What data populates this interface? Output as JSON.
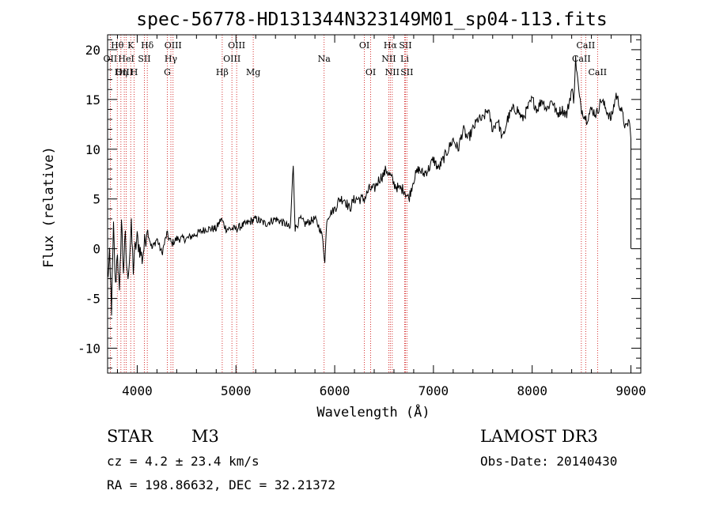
{
  "chart_data": {
    "type": "line",
    "title": "spec-56778-HD131344N323149M01_sp04-113.fits",
    "xlabel": "Wavelength (Å)",
    "ylabel": "Flux (relative)",
    "xlim": [
      3700,
      9100
    ],
    "ylim": [
      -12.5,
      21.5
    ],
    "xticks": [
      4000,
      5000,
      6000,
      7000,
      8000,
      9000
    ],
    "yticks": [
      -10,
      -5,
      0,
      5,
      10,
      15,
      20
    ],
    "grid": false,
    "legend": "none",
    "series": [
      {
        "name": "flux",
        "x": [
          3700,
          3720,
          3740,
          3760,
          3780,
          3800,
          3820,
          3840,
          3860,
          3880,
          3900,
          3920,
          3940,
          3960,
          3980,
          4000,
          4050,
          4100,
          4150,
          4200,
          4250,
          4300,
          4350,
          4400,
          4500,
          4600,
          4700,
          4800,
          4850,
          4900,
          5000,
          5100,
          5200,
          5300,
          5400,
          5500,
          5550,
          5580,
          5600,
          5650,
          5700,
          5800,
          5850,
          5880,
          5900,
          5920,
          5950,
          6000,
          6050,
          6100,
          6150,
          6200,
          6250,
          6300,
          6350,
          6400,
          6450,
          6500,
          6520,
          6550,
          6580,
          6600,
          6650,
          6700,
          6750,
          6800,
          6850,
          6900,
          6950,
          7000,
          7050,
          7100,
          7150,
          7200,
          7250,
          7300,
          7350,
          7400,
          7450,
          7500,
          7550,
          7600,
          7650,
          7700,
          7750,
          7800,
          7850,
          7900,
          7950,
          8000,
          8050,
          8100,
          8150,
          8200,
          8250,
          8300,
          8350,
          8400,
          8420,
          8440,
          8460,
          8480,
          8500,
          8550,
          8600,
          8650,
          8700,
          8750,
          8800,
          8850,
          8900,
          8950,
          8980,
          9000
        ],
        "y": [
          -3,
          -1,
          -6,
          2,
          -4,
          0,
          -5,
          3,
          -2,
          1,
          -3,
          -1,
          2,
          -2,
          0,
          1,
          -1,
          2,
          0,
          1,
          -0.5,
          1.5,
          0.5,
          1,
          1,
          1.5,
          2,
          2,
          3,
          2,
          2,
          2.5,
          3,
          2.5,
          3,
          2.5,
          2,
          8.5,
          2,
          3,
          2.5,
          3,
          2,
          1,
          -1.5,
          3,
          3.5,
          4,
          5,
          5,
          4,
          5,
          5,
          5,
          6,
          6,
          7,
          7.5,
          8,
          7.5,
          7,
          6.5,
          6,
          6,
          5,
          7,
          8,
          7.5,
          8,
          9,
          8,
          9,
          10,
          11,
          10,
          12,
          11,
          12,
          13,
          13,
          14,
          12,
          13,
          11,
          13,
          14,
          14,
          13,
          14,
          15,
          14,
          15,
          14,
          15,
          13.5,
          14,
          13.5,
          16,
          15,
          19,
          17,
          15,
          14,
          13,
          14,
          13.5,
          15,
          14,
          13,
          15.5,
          14,
          12,
          13,
          11
        ],
        "values": [
          -3,
          -1,
          -6,
          2,
          -4,
          0,
          -5,
          3,
          -2,
          1,
          -3,
          -1,
          2,
          -2,
          0,
          1,
          -1,
          2,
          0,
          1,
          -0.5,
          1.5,
          0.5,
          1,
          1,
          1.5,
          2,
          2,
          3,
          2,
          2,
          2.5,
          3,
          2.5,
          3,
          2.5,
          2,
          8.5,
          2,
          3,
          2.5,
          3,
          2,
          1,
          -1.5,
          3,
          3.5,
          4,
          5,
          5,
          4,
          5,
          5,
          5,
          6,
          6,
          7,
          7.5,
          8,
          7.5,
          7,
          6.5,
          6,
          6,
          5,
          7,
          8,
          7.5,
          8,
          9,
          8,
          9,
          10,
          11,
          10,
          12,
          11,
          12,
          13,
          13,
          14,
          12,
          13,
          11,
          13,
          14,
          14,
          13,
          14,
          15,
          14,
          15,
          14,
          15,
          13.5,
          14,
          13.5,
          16,
          15,
          19,
          17,
          15,
          14,
          13,
          14,
          13.5,
          15,
          14,
          13,
          15.5,
          14,
          12,
          13,
          11
        ]
      }
    ],
    "spectral_lines": [
      {
        "name": "Hθ",
        "wavelength": 3798,
        "row": 0
      },
      {
        "name": "OII",
        "wavelength": 3727,
        "row": 1
      },
      {
        "name": "OIII",
        "wavelength": 3869,
        "row": 2
      },
      {
        "name": "K",
        "wavelength": 3934,
        "row": 0
      },
      {
        "name": "HeI",
        "wavelength": 3889,
        "row": 1
      },
      {
        "name": "Hη",
        "wavelength": 3835,
        "row": 2
      },
      {
        "name": "SII",
        "wavelength": 4072,
        "row": 1
      },
      {
        "name": "H",
        "wavelength": 3969,
        "row": 2
      },
      {
        "name": "Hδ",
        "wavelength": 4102,
        "row": 0
      },
      {
        "name": "OIII",
        "wavelength": 4363,
        "row": 0
      },
      {
        "name": "Hγ",
        "wavelength": 4341,
        "row": 1
      },
      {
        "name": "G",
        "wavelength": 4305,
        "row": 2
      },
      {
        "name": "OIII",
        "wavelength": 5007,
        "row": 0
      },
      {
        "name": "OIII",
        "wavelength": 4959,
        "row": 1
      },
      {
        "name": "Hβ",
        "wavelength": 4861,
        "row": 2
      },
      {
        "name": "Mg",
        "wavelength": 5175,
        "row": 2
      },
      {
        "name": "Na",
        "wavelength": 5893,
        "row": 1
      },
      {
        "name": "OI",
        "wavelength": 6300,
        "row": 0
      },
      {
        "name": "OI",
        "wavelength": 6364,
        "row": 2
      },
      {
        "name": "Hα",
        "wavelength": 6563,
        "row": 0
      },
      {
        "name": "SII",
        "wavelength": 6716,
        "row": 0
      },
      {
        "name": "NII",
        "wavelength": 6548,
        "row": 1
      },
      {
        "name": "Li",
        "wavelength": 6708,
        "row": 1
      },
      {
        "name": "NII",
        "wavelength": 6583,
        "row": 2
      },
      {
        "name": "SII",
        "wavelength": 6731,
        "row": 2
      },
      {
        "name": "CaII",
        "wavelength": 8542,
        "row": 0
      },
      {
        "name": "CaII",
        "wavelength": 8498,
        "row": 1
      },
      {
        "name": "CaII",
        "wavelength": 8662,
        "row": 2
      }
    ]
  },
  "footer": {
    "object_type": "STAR",
    "subclass": "M3",
    "survey": "LAMOST DR3",
    "redshift": "cz = 4.2 ± 23.4 km/s",
    "obs_date": "Obs-Date: 20140430",
    "coordinates": "RA = 198.86632, DEC =  32.21372"
  },
  "colors": {
    "spectrum": "#000000",
    "line_markers": "#cc0000",
    "background": "#ffffff"
  }
}
